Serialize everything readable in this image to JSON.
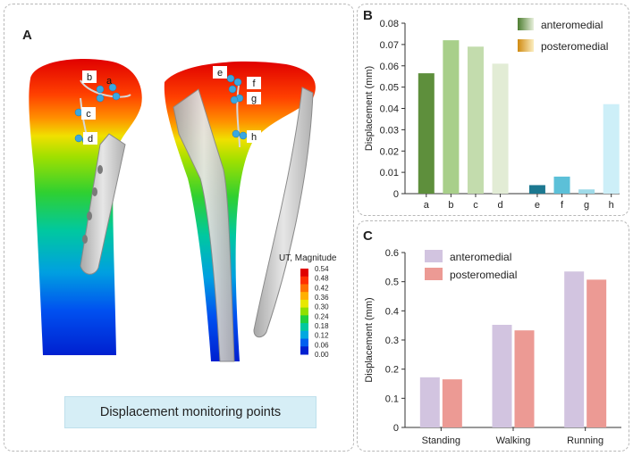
{
  "panel_a": {
    "label": "A",
    "caption": "Displacement monitoring points",
    "colorbar": {
      "title": "UT, Magnitude",
      "ticks": [
        "0.54",
        "0.48",
        "0.42",
        "0.36",
        "0.30",
        "0.24",
        "0.18",
        "0.12",
        "0.06",
        "0.00"
      ],
      "colors": [
        "#e00000",
        "#ff3000",
        "#ff7000",
        "#ffb000",
        "#e8e800",
        "#90e000",
        "#20d040",
        "#00c8a0",
        "#00a8e0",
        "#0060f0",
        "#0020d0"
      ]
    },
    "point_labels": [
      "a",
      "b",
      "c",
      "d",
      "e",
      "f",
      "g",
      "h"
    ]
  },
  "chart_data": [
    {
      "panel": "B",
      "type": "bar",
      "categories": [
        "a",
        "b",
        "c",
        "d",
        "e",
        "f",
        "g",
        "h"
      ],
      "values": [
        0.0565,
        0.072,
        0.069,
        0.061,
        0.004,
        0.008,
        0.002,
        0.042
      ],
      "colors": [
        "#5e8f3c",
        "#a8cf8a",
        "#c3dcad",
        "#e2ecd5",
        "#1c7890",
        "#5cc0d8",
        "#9fdae8",
        "#cdeff8"
      ],
      "series": [
        {
          "name": "anteromedial",
          "color": "#6b9a4a"
        },
        {
          "name": "posteromedial",
          "color": "#e3a32a"
        }
      ],
      "ylabel": "Displacement (mm)",
      "xlabel": "",
      "ylim": [
        0,
        0.08
      ],
      "yticks": [
        "0",
        "0.01",
        "0.02",
        "0.03",
        "0.04",
        "0.05",
        "0.06",
        "0.07",
        "0.08"
      ]
    },
    {
      "panel": "C",
      "type": "bar",
      "categories": [
        "Standing",
        "Walking",
        "Running"
      ],
      "series": [
        {
          "name": "anteromedial",
          "color": "#d2c4e0",
          "values": [
            0.172,
            0.352,
            0.535
          ]
        },
        {
          "name": "posteromedial",
          "color": "#ec9a94",
          "values": [
            0.165,
            0.333,
            0.507
          ]
        }
      ],
      "ylabel": "Displacement (mm)",
      "xlabel": "",
      "ylim": [
        0,
        0.6
      ],
      "yticks": [
        "0",
        "0.1",
        "0.2",
        "0.3",
        "0.4",
        "0.5",
        "0.6"
      ]
    }
  ]
}
